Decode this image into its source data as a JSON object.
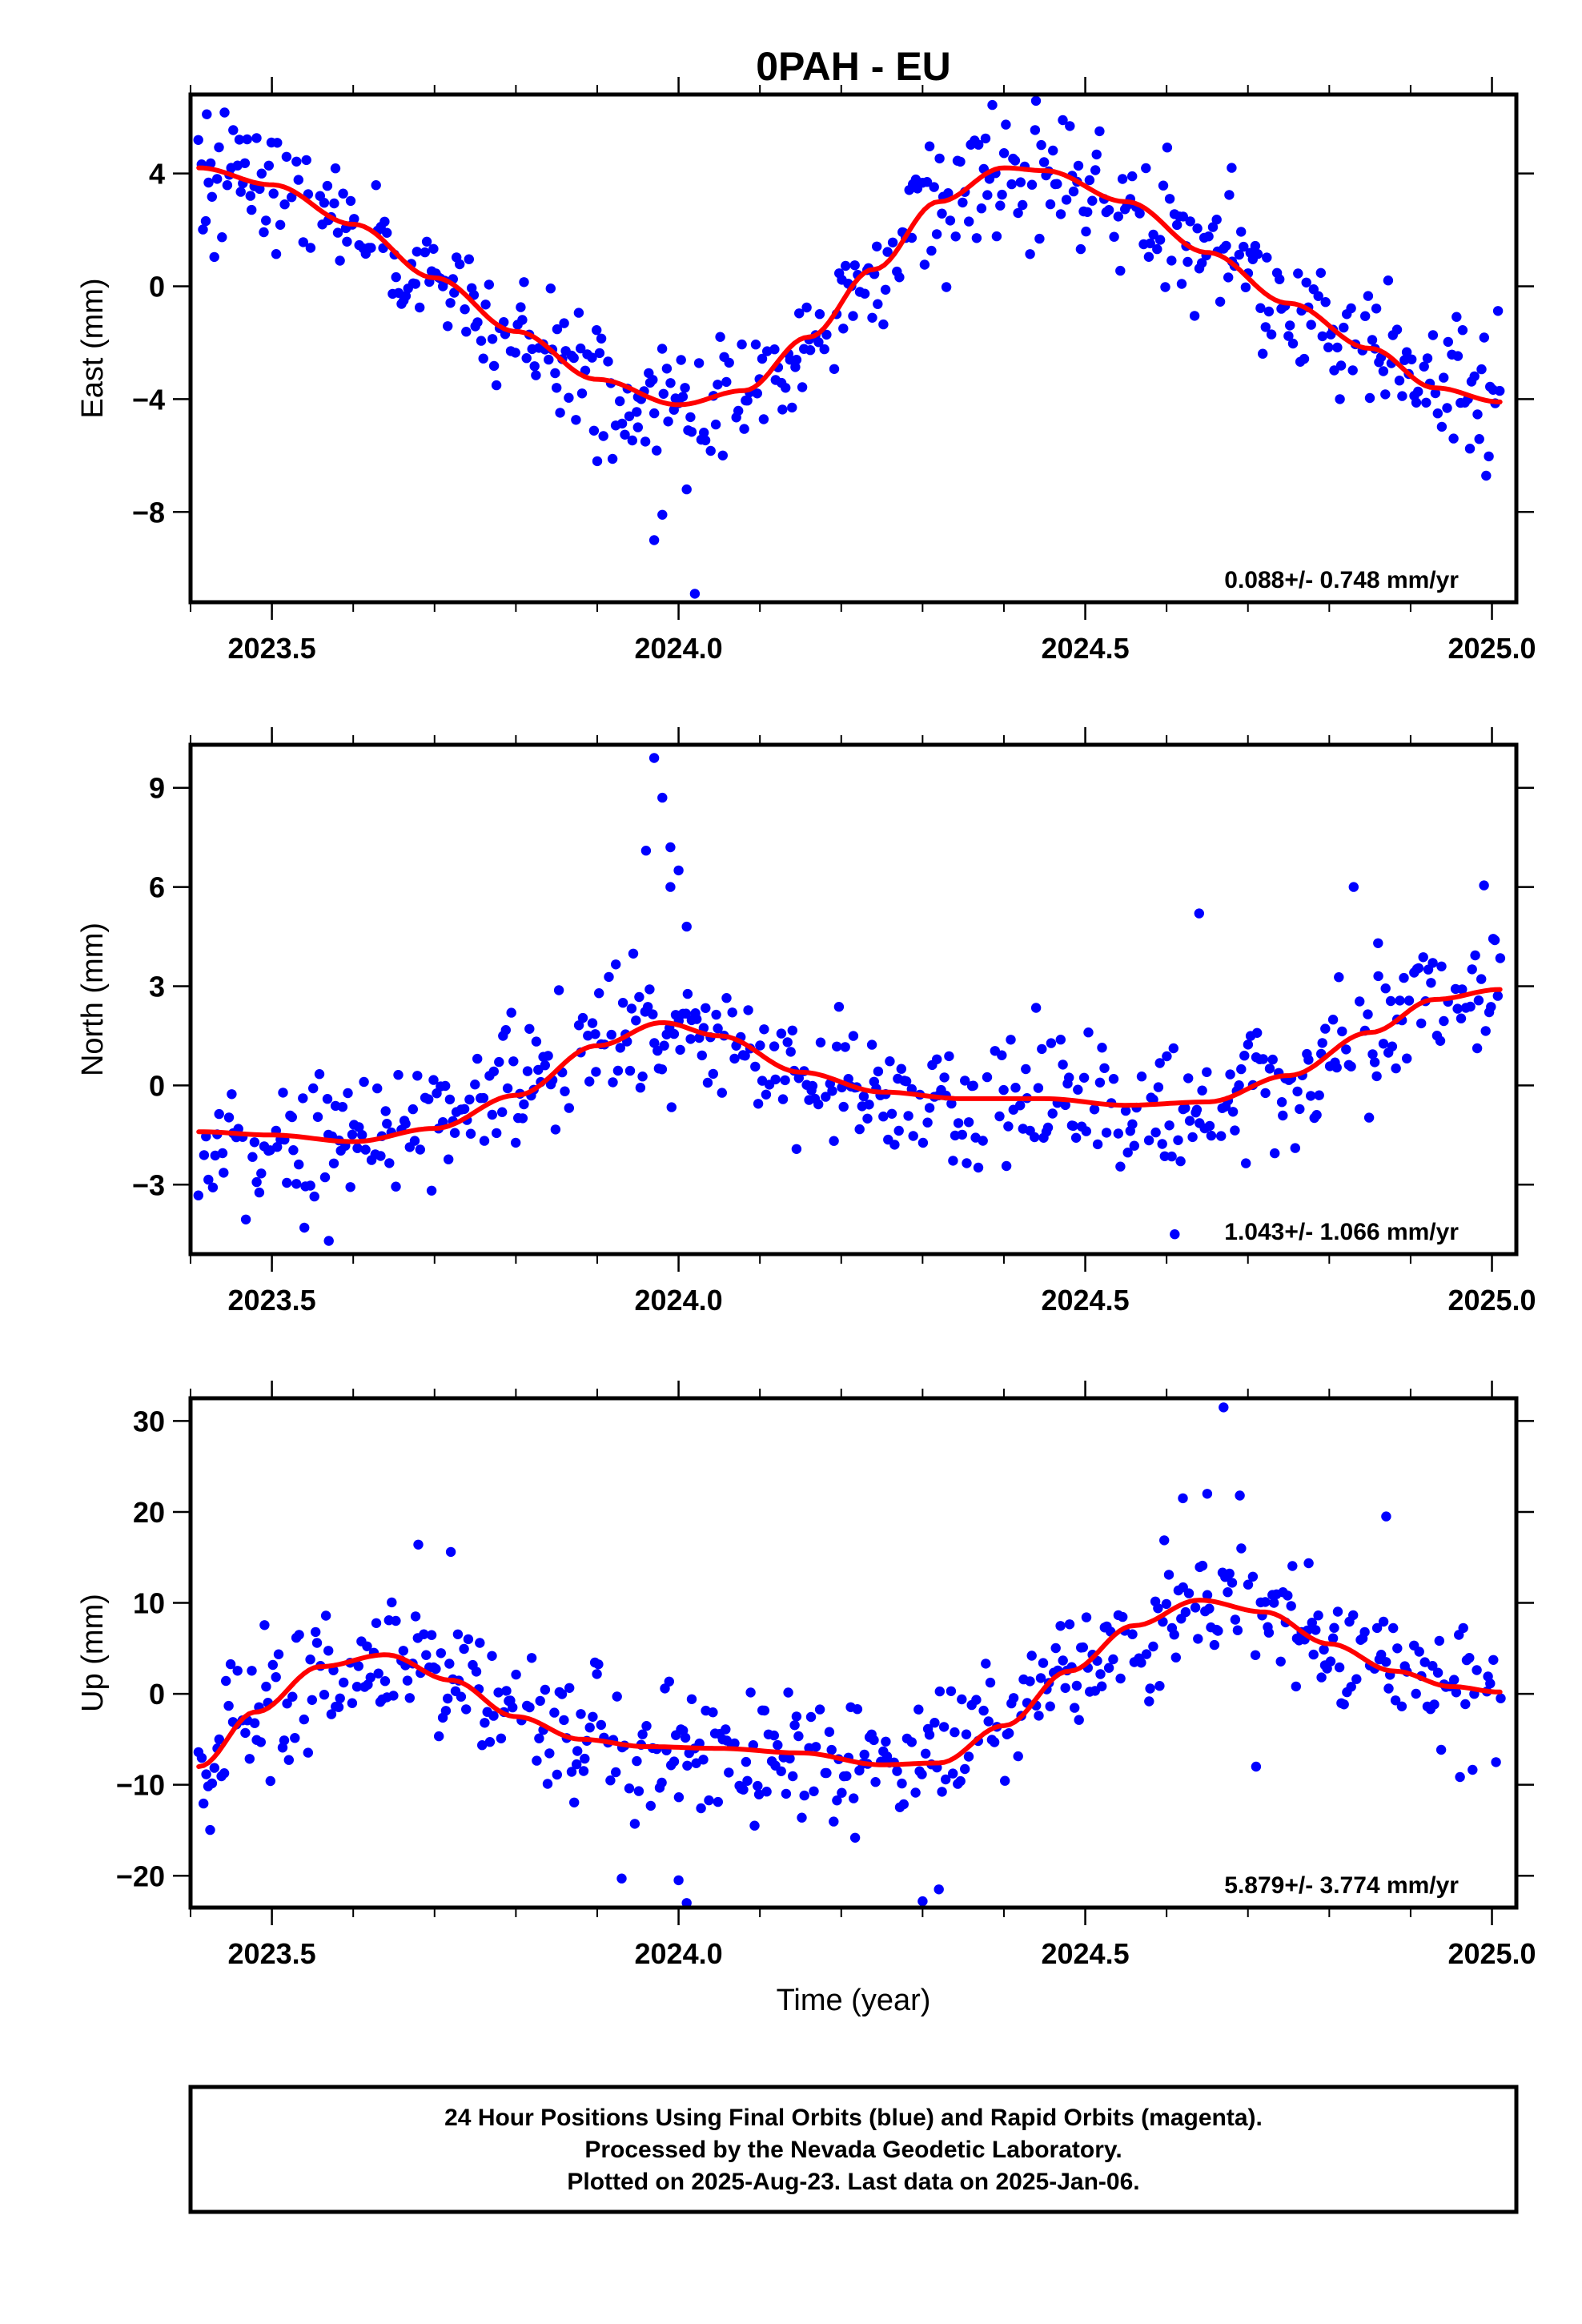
{
  "title": "0PAH - EU",
  "x_axis_label": "Time (year)",
  "caption": [
    "24 Hour Positions Using Final Orbits (blue) and Rapid Orbits (magenta).",
    "Processed by the Nevada Geodetic Laboratory.",
    "Plotted on 2025-Aug-23. Last data on 2025-Jan-06."
  ],
  "colors": {
    "points": "#0000ff",
    "fit": "#ff0000",
    "frame": "#000000"
  },
  "chart_data": [
    {
      "type": "scatter",
      "ylabel": "East (mm)",
      "xlim": [
        2023.4,
        2025.03
      ],
      "ylim": [
        -11.2,
        6.8
      ],
      "x_ticks": [
        2023.5,
        2024.0,
        2024.5,
        2025.0
      ],
      "x_tick_labels": [
        "2023.5",
        "2024.0",
        "2024.5",
        "2025.0"
      ],
      "y_ticks": [
        4,
        0,
        -4,
        -8
      ],
      "y_tick_labels": [
        "4",
        "0",
        "−4",
        "−8"
      ],
      "rate_text": "0.088+/- 0.748 mm/yr",
      "fit": {
        "x": [
          2023.41,
          2023.5,
          2023.6,
          2023.7,
          2023.8,
          2023.9,
          2024.0,
          2024.08,
          2024.16,
          2024.24,
          2024.32,
          2024.4,
          2024.45,
          2024.55,
          2024.65,
          2024.75,
          2024.85,
          2024.93,
          2025.01
        ],
        "y": [
          4.2,
          3.6,
          2.2,
          0.3,
          -1.6,
          -3.3,
          -4.2,
          -3.7,
          -1.8,
          0.6,
          3.0,
          4.2,
          4.1,
          3.0,
          1.2,
          -0.6,
          -2.2,
          -3.6,
          -4.1
        ]
      },
      "seed": 101,
      "noise_sd": 1.1,
      "series": [
        {
          "name": "24 Hour Positions",
          "x": [
            2023.85,
            2023.9,
            2023.95,
            2023.97,
            2023.98,
            2024.01,
            2024.02,
            2023.42,
            2023.46,
            2024.68
          ],
          "y": [
            -3.6,
            -6.2,
            -5.0,
            -9.0,
            -8.1,
            -7.2,
            -10.9,
            6.1,
            5.2,
            4.2
          ]
        }
      ]
    },
    {
      "type": "scatter",
      "ylabel": "North (mm)",
      "xlim": [
        2023.4,
        2025.03
      ],
      "ylim": [
        -5.1,
        10.3
      ],
      "x_ticks": [
        2023.5,
        2024.0,
        2024.5,
        2025.0
      ],
      "x_tick_labels": [
        "2023.5",
        "2024.0",
        "2024.5",
        "2025.0"
      ],
      "y_ticks": [
        9,
        6,
        3,
        0,
        -3
      ],
      "y_tick_labels": [
        "9",
        "6",
        "3",
        "0",
        "−3"
      ],
      "rate_text": "1.043+/- 1.066 mm/yr",
      "fit": {
        "x": [
          2023.41,
          2023.5,
          2023.6,
          2023.7,
          2023.8,
          2023.9,
          2023.98,
          2024.05,
          2024.15,
          2024.25,
          2024.35,
          2024.45,
          2024.55,
          2024.65,
          2024.75,
          2024.85,
          2024.93,
          2025.01
        ],
        "y": [
          -1.4,
          -1.5,
          -1.7,
          -1.3,
          -0.3,
          1.2,
          1.9,
          1.5,
          0.4,
          -0.2,
          -0.4,
          -0.4,
          -0.6,
          -0.5,
          0.3,
          1.6,
          2.6,
          2.9
        ]
      },
      "seed": 202,
      "noise_sd": 1.0,
      "series": [
        {
          "name": "24 Hour Positions",
          "x": [
            2023.97,
            2023.98,
            2023.99,
            2024.0,
            2023.96,
            2023.99,
            2024.01,
            2023.57,
            2023.54,
            2024.83,
            2024.86,
            2024.64,
            2024.61
          ],
          "y": [
            9.9,
            8.7,
            7.2,
            6.5,
            7.1,
            6.0,
            4.8,
            -4.7,
            -4.3,
            6.0,
            4.3,
            5.2,
            -4.5
          ]
        }
      ]
    },
    {
      "type": "scatter",
      "ylabel": "Up (mm)",
      "xlim": [
        2023.4,
        2025.03
      ],
      "ylim": [
        -23.5,
        32.5
      ],
      "x_ticks": [
        2023.5,
        2024.0,
        2024.5,
        2025.0
      ],
      "x_tick_labels": [
        "2023.5",
        "2024.0",
        "2024.5",
        "2025.0"
      ],
      "y_ticks": [
        30,
        20,
        10,
        0,
        -10,
        -20
      ],
      "y_tick_labels": [
        "30",
        "20",
        "10",
        "0",
        "−10",
        "−20"
      ],
      "rate_text": "5.879+/- 3.774 mm/yr",
      "fit": {
        "x": [
          2023.41,
          2023.48,
          2023.56,
          2023.64,
          2023.72,
          2023.8,
          2023.88,
          2023.96,
          2024.05,
          2024.15,
          2024.25,
          2024.32,
          2024.4,
          2024.48,
          2024.56,
          2024.64,
          2024.72,
          2024.8,
          2024.88,
          2024.95,
          2025.01
        ],
        "y": [
          -8.0,
          -2.0,
          3.0,
          4.3,
          1.5,
          -2.5,
          -5.0,
          -5.8,
          -6.0,
          -6.5,
          -7.8,
          -7.6,
          -3.5,
          2.5,
          7.5,
          10.3,
          9.0,
          5.5,
          2.5,
          0.8,
          0.2
        ]
      },
      "seed": 303,
      "noise_sd": 3.6,
      "series": [
        {
          "name": "24 Hour Positions",
          "x": [
            2024.67,
            2024.65,
            2024.62,
            2024.69,
            2024.87,
            2023.68,
            2023.72,
            2024.3,
            2024.32,
            2024.01,
            2024.0,
            2023.93,
            2024.71
          ],
          "y": [
            31.5,
            22.0,
            21.5,
            21.8,
            19.5,
            16.4,
            15.6,
            -22.8,
            -21.5,
            -23.0,
            -20.5,
            -20.3,
            -8.0
          ]
        }
      ]
    }
  ]
}
